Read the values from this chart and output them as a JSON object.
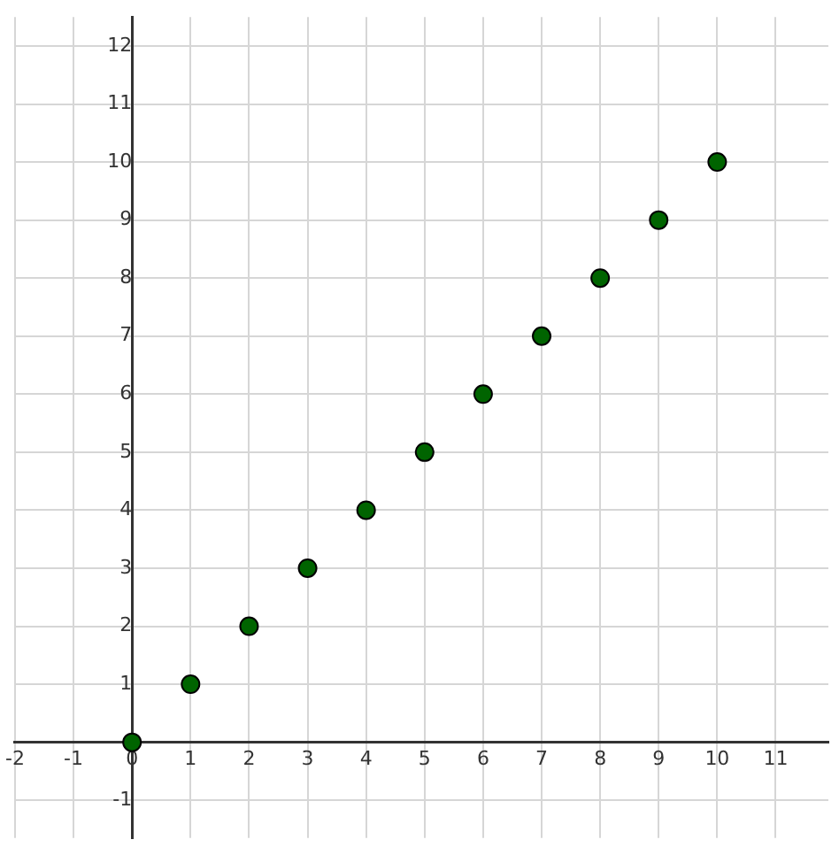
{
  "chart_data": {
    "type": "scatter",
    "x": [
      0,
      1,
      2,
      3,
      4,
      5,
      6,
      7,
      8,
      9,
      10
    ],
    "series": [
      {
        "color": "#006400",
        "values": [
          0,
          1,
          2,
          3,
          4,
          5,
          6,
          7,
          8,
          9,
          10
        ]
      }
    ],
    "xlim": [
      -2,
      11.9
    ],
    "ylim": [
      -1.65,
      12.5
    ],
    "xticks": [
      -2,
      -1,
      0,
      1,
      2,
      3,
      4,
      5,
      6,
      7,
      8,
      9,
      10,
      11
    ],
    "yticks": [
      -1,
      1,
      2,
      3,
      4,
      5,
      6,
      7,
      8,
      9,
      10,
      11,
      12
    ],
    "grid": true,
    "marker": "circle",
    "legend": false
  }
}
